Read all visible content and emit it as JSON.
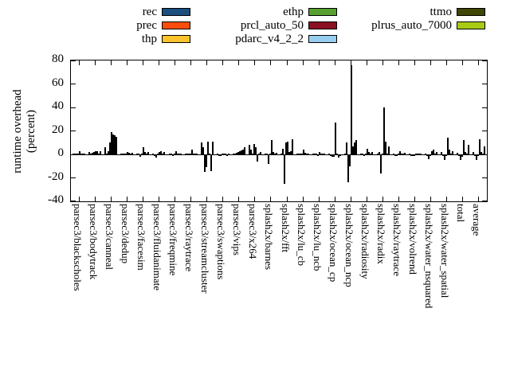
{
  "legend": {
    "items": [
      {
        "label": "rec",
        "color": "#1b4f7e",
        "col": 0,
        "row": 0
      },
      {
        "label": "prec",
        "color": "#fd4d0c",
        "col": 0,
        "row": 1
      },
      {
        "label": "thp",
        "color": "#fbc42c",
        "col": 0,
        "row": 2
      },
      {
        "label": "ethp",
        "color": "#57a02f",
        "col": 1,
        "row": 0
      },
      {
        "label": "prcl_auto_50",
        "color": "#8c1023",
        "col": 1,
        "row": 1
      },
      {
        "label": "pdarc_v4_2_2",
        "color": "#97ceef",
        "col": 1,
        "row": 2
      },
      {
        "label": "ttmo",
        "color": "#3f4606",
        "col": 2,
        "row": 0
      },
      {
        "label": "plrus_auto_7000",
        "color": "#a8cb14",
        "col": 2,
        "row": 1
      }
    ]
  },
  "chart_data": {
    "type": "bar",
    "title": "",
    "xlabel": "",
    "ylabel": "runtime overhead (percent)",
    "ylabel_lines": [
      "runtime overhead",
      "(percent)"
    ],
    "ylim": [
      -40,
      80
    ],
    "yticks": [
      -40,
      -20,
      0,
      20,
      40,
      60,
      80
    ],
    "grid": false,
    "legend_position": "top",
    "categories": [
      "parsec3/blackscholes",
      "parsec3/bodytrack",
      "parsec3/canneal",
      "parsec3/dedup",
      "parsec3/facesim",
      "parsec3/fluidanimate",
      "parsec3/freqmine",
      "parsec3/raytrace",
      "parsec3/streamcluster",
      "parsec3/swaptions",
      "parsec3/vips",
      "parsec3/x264",
      "splash2x/barnes",
      "splash2x/fft",
      "splash2x/lu_cb",
      "splash2x/lu_ncb",
      "splash2x/ocean_cp",
      "splash2x/ocean_ncp",
      "splash2x/radiosity",
      "splash2x/radix",
      "splash2x/raytrace",
      "splash2x/volrend",
      "splash2x/water_nsquared",
      "splash2x/water_spatial",
      "total",
      "average"
    ],
    "series": [
      {
        "name": "rec",
        "color": "#1b4f7e",
        "values": [
          0.5,
          2,
          6,
          1,
          1,
          0.5,
          0.5,
          0.5,
          10,
          0.5,
          1,
          8,
          1,
          1,
          1,
          1,
          0.5,
          0.5,
          1,
          0.5,
          0.5,
          0.5,
          1,
          2,
          1.5,
          2
        ]
      },
      {
        "name": "prec",
        "color": "#fd4d0c",
        "values": [
          0.5,
          1,
          1,
          0.5,
          0.5,
          -1,
          0.5,
          0.5,
          6,
          -0.5,
          1,
          4,
          1,
          5,
          0.5,
          0.5,
          -1,
          10,
          0.5,
          2,
          -0.5,
          -0.5,
          -0.5,
          -1,
          -0.5,
          -1
        ]
      },
      {
        "name": "thp",
        "color": "#fbc42c",
        "values": [
          1,
          1.5,
          2.5,
          1,
          -2,
          -3,
          -1,
          1,
          -15,
          -1,
          1.5,
          1,
          -8,
          -25,
          1,
          1,
          -2,
          -24,
          -1,
          -16,
          -1,
          -1,
          -4,
          -5,
          -5,
          -5
        ]
      },
      {
        "name": "ethp",
        "color": "#57a02f",
        "values": [
          0.5,
          2,
          10,
          1,
          1,
          1,
          0.5,
          0.5,
          -11,
          0.5,
          2,
          9,
          1,
          10,
          0.5,
          -1,
          -2,
          -10,
          0.5,
          0.5,
          0.5,
          -0.5,
          -1,
          -1,
          -2,
          -1
        ]
      },
      {
        "name": "prcl_auto_50",
        "color": "#8c1023",
        "values": [
          2.5,
          2.5,
          19,
          2,
          6,
          2,
          3,
          4,
          11,
          0.5,
          3,
          6,
          12,
          11,
          4,
          2,
          27,
          76,
          5,
          40,
          3,
          1,
          3,
          14,
          12,
          13
        ]
      },
      {
        "name": "pdarc_v4_2_2",
        "color": "#97ceef",
        "values": [
          1,
          2.5,
          17,
          1.5,
          2,
          3,
          1,
          1,
          1,
          0.5,
          3.5,
          -6,
          2,
          2,
          1.5,
          1,
          1,
          7,
          2,
          11,
          1,
          0.5,
          4,
          4,
          2,
          2
        ]
      },
      {
        "name": "ttmo",
        "color": "#3f4606",
        "values": [
          0.5,
          1,
          16,
          0.5,
          1,
          1,
          0.5,
          0.5,
          -14,
          -0.5,
          4,
          1,
          0.5,
          3,
          0.5,
          0.5,
          -3,
          10,
          0.5,
          1,
          0.5,
          0.5,
          0.5,
          1,
          1,
          1
        ]
      },
      {
        "name": "plrus_auto_7000",
        "color": "#a8cb14",
        "values": [
          1,
          3,
          15,
          1.5,
          2,
          2,
          1,
          1,
          11,
          0.5,
          6,
          2,
          1.5,
          13,
          1,
          1,
          -1,
          12,
          2,
          7,
          1.5,
          1,
          2,
          3,
          8,
          7
        ]
      }
    ]
  }
}
